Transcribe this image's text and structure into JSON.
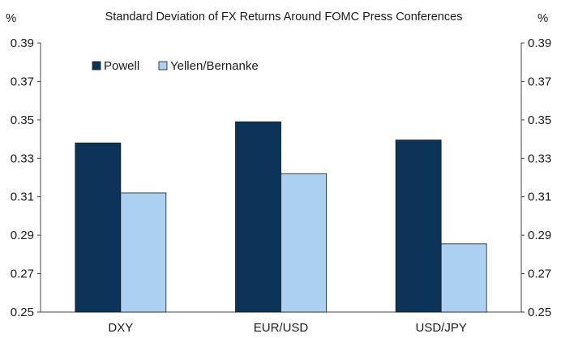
{
  "chart_data": {
    "type": "bar",
    "title": "Standard Deviation of FX Returns Around FOMC Press Conferences",
    "y_unit_left": "%",
    "y_unit_right": "%",
    "categories": [
      "DXY",
      "EUR/USD",
      "USD/JPY"
    ],
    "series": [
      {
        "name": "Powell",
        "values": [
          0.338,
          0.349,
          0.3395
        ],
        "color": "#0c3358"
      },
      {
        "name": "Yellen/Bernanke",
        "values": [
          0.312,
          0.322,
          0.2855
        ],
        "color": "#acd0ef"
      }
    ],
    "ylim": [
      0.25,
      0.39
    ],
    "yticks": [
      "0.25",
      "0.27",
      "0.29",
      "0.31",
      "0.33",
      "0.35",
      "0.37",
      "0.39"
    ],
    "grid": false,
    "legend_position": "top-left"
  }
}
